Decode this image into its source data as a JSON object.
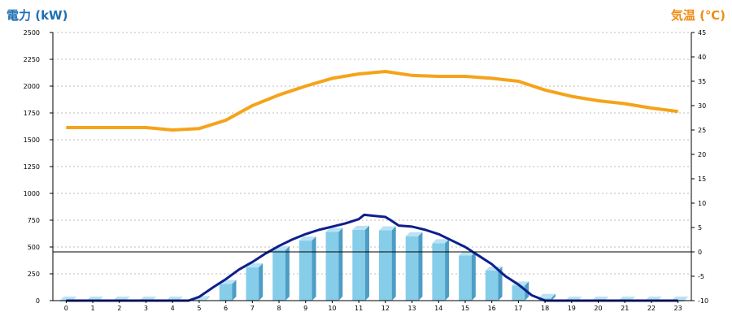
{
  "chart_data": {
    "type": "bar",
    "left_axis_title": "電力 (kW)",
    "right_axis_title": "気温 (℃)",
    "categories": [
      "0",
      "1",
      "2",
      "3",
      "4",
      "5",
      "6",
      "7",
      "8",
      "9",
      "10",
      "11",
      "12",
      "13",
      "14",
      "15",
      "16",
      "17",
      "18",
      "19",
      "20",
      "21",
      "22",
      "23"
    ],
    "y_left_ticks": [
      "0",
      "250",
      "500",
      "750",
      "1000",
      "1250",
      "1500",
      "1750",
      "2000",
      "2250",
      "2500"
    ],
    "y_right_ticks": [
      "-10",
      "-5",
      "0",
      "5",
      "10",
      "15",
      "20",
      "25",
      "30",
      "35",
      "40",
      "45"
    ],
    "y_left_range": [
      0,
      2500
    ],
    "y_right_range": [
      -10,
      45
    ],
    "bars": {
      "color": "#86cdea",
      "values": [
        0,
        0,
        0,
        0,
        0,
        5,
        155,
        310,
        470,
        560,
        640,
        660,
        655,
        600,
        535,
        420,
        280,
        140,
        25,
        0,
        0,
        0,
        0,
        0
      ]
    },
    "power_line": {
      "color": "#0d1f8c",
      "points": [
        [
          0,
          0
        ],
        [
          1,
          0
        ],
        [
          2,
          0
        ],
        [
          3,
          0
        ],
        [
          4,
          0
        ],
        [
          4.6,
          0
        ],
        [
          5,
          35
        ],
        [
          5.5,
          120
        ],
        [
          6,
          200
        ],
        [
          6.5,
          290
        ],
        [
          7,
          360
        ],
        [
          7.5,
          440
        ],
        [
          8,
          510
        ],
        [
          8.5,
          570
        ],
        [
          9,
          620
        ],
        [
          9.5,
          660
        ],
        [
          10,
          690
        ],
        [
          10.5,
          720
        ],
        [
          11,
          760
        ],
        [
          11.2,
          800
        ],
        [
          11.6,
          790
        ],
        [
          12,
          780
        ],
        [
          12.2,
          750
        ],
        [
          12.5,
          700
        ],
        [
          13,
          690
        ],
        [
          13.5,
          660
        ],
        [
          14,
          620
        ],
        [
          14.5,
          560
        ],
        [
          15,
          500
        ],
        [
          15.5,
          420
        ],
        [
          16,
          340
        ],
        [
          16.5,
          230
        ],
        [
          17,
          150
        ],
        [
          17.5,
          50
        ],
        [
          18,
          0
        ],
        [
          19,
          0
        ],
        [
          20,
          0
        ],
        [
          21,
          0
        ],
        [
          22,
          0
        ],
        [
          23,
          0
        ]
      ]
    },
    "temperature_line": {
      "color": "#f5a31a",
      "points": [
        [
          0,
          25.5
        ],
        [
          1,
          25.5
        ],
        [
          2,
          25.5
        ],
        [
          3,
          25.5
        ],
        [
          4,
          25
        ],
        [
          5,
          25.3
        ],
        [
          6,
          27
        ],
        [
          7,
          30
        ],
        [
          8,
          32.2
        ],
        [
          9,
          34
        ],
        [
          10,
          35.6
        ],
        [
          11,
          36.5
        ],
        [
          12,
          37
        ],
        [
          13,
          36.2
        ],
        [
          14,
          36
        ],
        [
          15,
          36
        ],
        [
          16,
          35.6
        ],
        [
          17,
          35
        ],
        [
          18,
          33.2
        ],
        [
          19,
          31.9
        ],
        [
          20,
          31
        ],
        [
          21,
          30.4
        ],
        [
          22,
          29.5
        ],
        [
          23,
          28.8
        ]
      ]
    },
    "reference_line_right_value": 0,
    "grid": true
  }
}
